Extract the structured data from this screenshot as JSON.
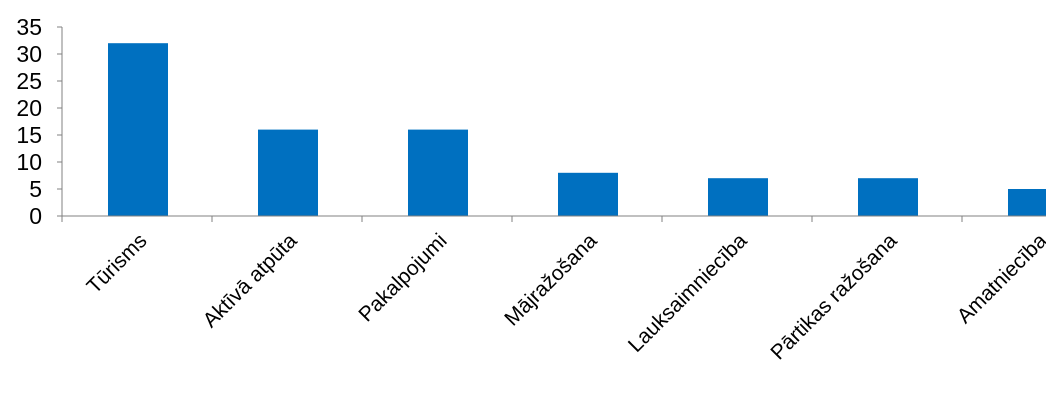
{
  "chart_data": {
    "type": "bar",
    "title": "",
    "xlabel": "",
    "ylabel": "",
    "categories": [
      "Tūrisms",
      "Aktīvā atpūta",
      "Pakalpojumi",
      "Mājražošana",
      "Lauksaimniecība",
      "Pārtikas ražošana",
      "Amatniecība"
    ],
    "values": [
      32,
      16,
      16,
      8,
      7,
      7,
      5
    ],
    "ylim": [
      0,
      35
    ],
    "yticks": [
      0,
      5,
      10,
      15,
      20,
      25,
      30,
      35
    ],
    "grid": false,
    "legend": "none",
    "bar_color": "#0070C0"
  }
}
